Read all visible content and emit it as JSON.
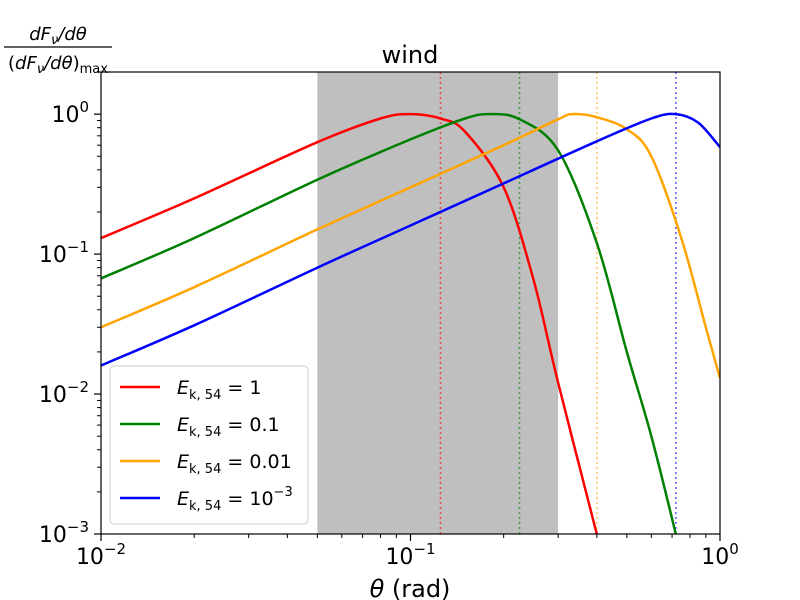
{
  "chart_data": {
    "type": "line",
    "title": "wind",
    "xlabel": "θ (rad)",
    "ylabel": "dFν/dθ / (dFν/dθ)max",
    "xscale": "log",
    "yscale": "log",
    "xlim": [
      0.01,
      1
    ],
    "ylim": [
      0.001,
      2
    ],
    "x_ticks": [
      {
        "base": "10",
        "exp": "−2"
      },
      {
        "base": "10",
        "exp": "−1"
      },
      {
        "base": "10",
        "exp": "0"
      }
    ],
    "y_ticks": [
      {
        "base": "10",
        "exp": "−3"
      },
      {
        "base": "10",
        "exp": "−2"
      },
      {
        "base": "10",
        "exp": "−1"
      },
      {
        "base": "10",
        "exp": "0"
      }
    ],
    "shaded_region": {
      "x0": 0.05,
      "x1": 0.3,
      "color": "#bfbfbf"
    },
    "legend_position": "lower-left",
    "grid": false,
    "series": [
      {
        "name": "E_k,54 = 1",
        "legend_sub": "k, 54",
        "legend_value": "1",
        "color": "#ff0000",
        "peak_x": 0.1,
        "vline_x": 0.125,
        "x": [
          0.01,
          0.02,
          0.05,
          0.08,
          0.1,
          0.125,
          0.15,
          0.2,
          0.25,
          0.3,
          0.4
        ],
        "y": [
          0.13,
          0.25,
          0.63,
          0.93,
          1.0,
          0.93,
          0.75,
          0.3,
          0.065,
          0.012,
          0.001
        ]
      },
      {
        "name": "E_k,54 = 0.1",
        "legend_sub": "k, 54",
        "legend_value": "0.1",
        "color": "#008000",
        "peak_x": 0.18,
        "vline_x": 0.225,
        "x": [
          0.01,
          0.02,
          0.05,
          0.1,
          0.15,
          0.18,
          0.225,
          0.3,
          0.4,
          0.5,
          0.6,
          0.72
        ],
        "y": [
          0.067,
          0.13,
          0.34,
          0.66,
          0.93,
          1.0,
          0.92,
          0.55,
          0.12,
          0.02,
          0.005,
          0.001
        ]
      },
      {
        "name": "E_k,54 = 0.01",
        "legend_sub": "k, 54",
        "legend_value": "0.01",
        "color": "#ffa500",
        "peak_x": 0.335,
        "vline_x": 0.4,
        "x": [
          0.01,
          0.02,
          0.05,
          0.1,
          0.2,
          0.3,
          0.335,
          0.4,
          0.5,
          0.6,
          0.75,
          0.9,
          1.0
        ],
        "y": [
          0.03,
          0.058,
          0.15,
          0.3,
          0.6,
          0.92,
          1.0,
          0.95,
          0.78,
          0.5,
          0.13,
          0.03,
          0.013
        ]
      },
      {
        "name": "E_k,54 = 10^-3",
        "legend_sub": "k, 54",
        "legend_value": "10",
        "legend_exp": "−3",
        "color": "#0000ff",
        "peak_x": 0.72,
        "vline_x": 0.72,
        "x": [
          0.01,
          0.02,
          0.05,
          0.1,
          0.2,
          0.4,
          0.6,
          0.72,
          0.85,
          1.0
        ],
        "y": [
          0.016,
          0.031,
          0.08,
          0.16,
          0.32,
          0.64,
          0.93,
          1.0,
          0.87,
          0.58
        ]
      }
    ]
  }
}
